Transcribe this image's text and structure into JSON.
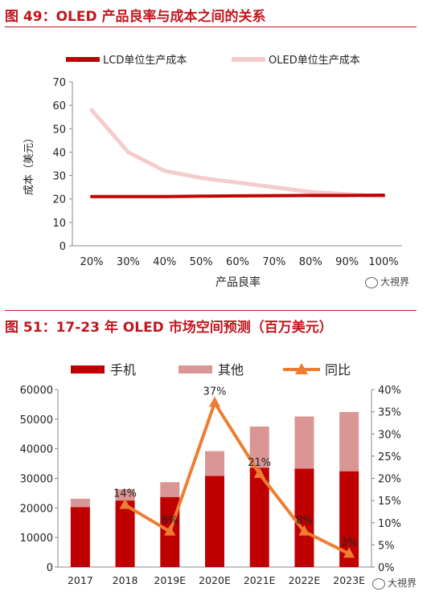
{
  "figure1": {
    "title": "图 49：OLED 产品良率与成本之间的关系",
    "watermark": "大視界",
    "chart_data": {
      "type": "line",
      "categories": [
        "20%",
        "30%",
        "40%",
        "50%",
        "60%",
        "70%",
        "80%",
        "90%",
        "100%"
      ],
      "series": [
        {
          "name": "LCD单位生产成本",
          "color": "#c00000",
          "values": [
            21,
            21,
            21,
            21.2,
            21.3,
            21.4,
            21.5,
            21.5,
            21.6
          ]
        },
        {
          "name": "OLED单位生产成本",
          "color": "#f4cccc",
          "values": [
            58,
            40,
            32,
            29,
            27,
            25,
            23,
            22,
            21
          ]
        }
      ],
      "xlabel": "产品良率",
      "ylabel": "成本（美元）",
      "ylim": [
        0,
        70
      ],
      "yticks": [
        "0",
        "10",
        "20",
        "30",
        "40",
        "50",
        "60",
        "70"
      ],
      "legend": "top",
      "grid": false
    }
  },
  "figure2": {
    "title": "图 51：17-23 年 OLED 市场空间预测（百万美元）",
    "watermark": "大視界",
    "chart_data": {
      "type": "bar",
      "stacked": true,
      "categories": [
        "2017",
        "2018",
        "2019E",
        "2020E",
        "2021E",
        "2022E",
        "2023E"
      ],
      "series": [
        {
          "name": "手机",
          "kind": "bar",
          "color": "#c00000",
          "values": [
            20300,
            22500,
            23700,
            30800,
            33600,
            33300,
            32400
          ]
        },
        {
          "name": "其他",
          "kind": "bar",
          "color": "#da9694",
          "values": [
            2800,
            3800,
            5000,
            8400,
            13900,
            17600,
            20000
          ]
        },
        {
          "name": "同比",
          "kind": "line",
          "axis": "right",
          "color": "#ed7d31",
          "values": [
            null,
            14,
            8,
            37,
            21,
            8,
            3
          ]
        }
      ],
      "data_labels": [
        "",
        "14%",
        "8%",
        "37%",
        "21%",
        "8%",
        "3%"
      ],
      "ylim": [
        0,
        60000
      ],
      "yticks": [
        "0",
        "10000",
        "20000",
        "30000",
        "40000",
        "50000",
        "60000"
      ],
      "y2lim": [
        0,
        40
      ],
      "y2ticks": [
        "0%",
        "5%",
        "10%",
        "15%",
        "20%",
        "25%",
        "30%",
        "35%",
        "40%"
      ],
      "legend": "top",
      "grid": false
    }
  }
}
